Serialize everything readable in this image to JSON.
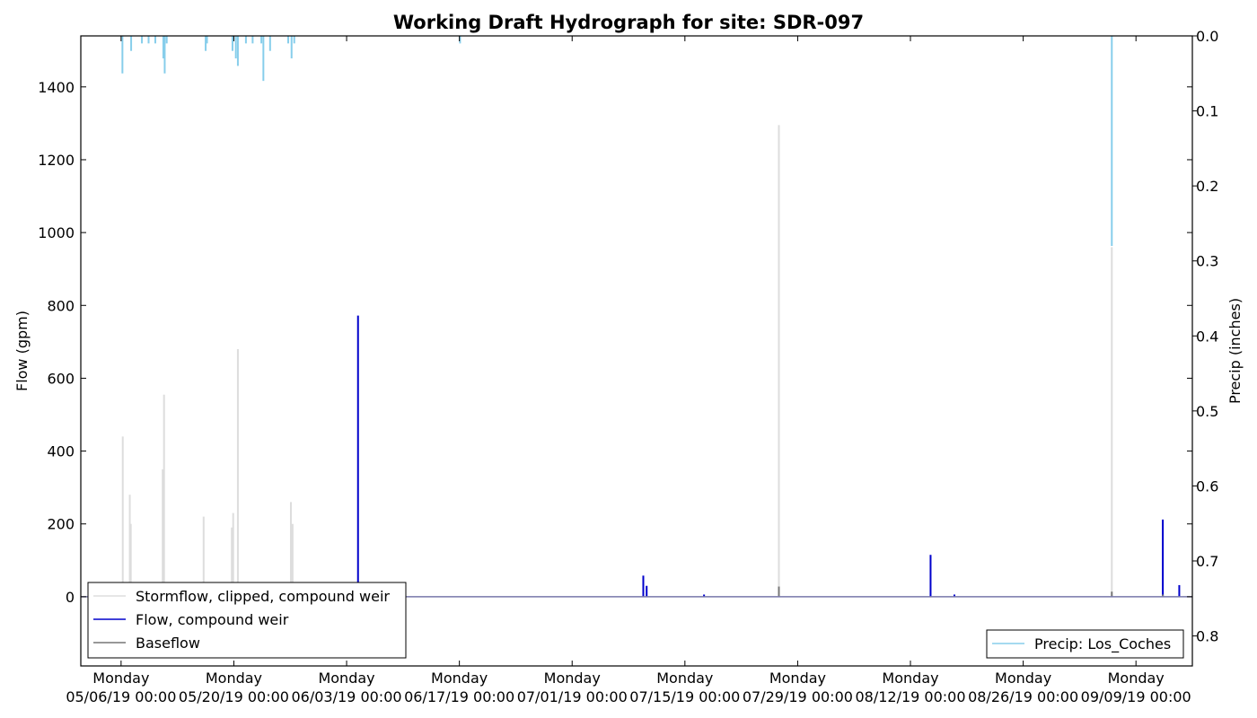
{
  "chart_data": {
    "type": "line",
    "title": "Working Draft Hydrograph for site: SDR-097",
    "ylabel": "Flow (gpm)",
    "y2label": "Precip (inches)",
    "ylim": [
      -190,
      1540
    ],
    "y2lim": [
      0.0,
      0.84
    ],
    "y2_inverted": true,
    "yticks": [
      0,
      200,
      400,
      600,
      800,
      1000,
      1200,
      1400
    ],
    "y2ticks": [
      0.0,
      0.1,
      0.2,
      0.3,
      0.4,
      0.5,
      0.6,
      0.7,
      0.8
    ],
    "xlim": [
      "2019-05-01",
      "2019-09-16"
    ],
    "xticks": [
      {
        "date": "2019-05-06",
        "line1": "Monday",
        "line2": "05/06/19 00:00"
      },
      {
        "date": "2019-05-20",
        "line1": "Monday",
        "line2": "05/20/19 00:00"
      },
      {
        "date": "2019-06-03",
        "line1": "Monday",
        "line2": "06/03/19 00:00"
      },
      {
        "date": "2019-06-17",
        "line1": "Monday",
        "line2": "06/17/19 00:00"
      },
      {
        "date": "2019-07-01",
        "line1": "Monday",
        "line2": "07/01/19 00:00"
      },
      {
        "date": "2019-07-15",
        "line1": "Monday",
        "line2": "07/15/19 00:00"
      },
      {
        "date": "2019-07-29",
        "line1": "Monday",
        "line2": "07/29/19 00:00"
      },
      {
        "date": "2019-08-12",
        "line1": "Monday",
        "line2": "08/12/19 00:00"
      },
      {
        "date": "2019-08-26",
        "line1": "Monday",
        "line2": "08/26/19 00:00"
      },
      {
        "date": "2019-09-09",
        "line1": "Monday",
        "line2": "09/09/19 00:00"
      }
    ],
    "grid": false,
    "legend_left": {
      "placement": "lower-left",
      "entries": [
        {
          "label": "Stormflow, clipped, compound weir",
          "color": "#dddddd"
        },
        {
          "label": "Flow, compound weir",
          "color": "#0000cc"
        },
        {
          "label": "Baseflow",
          "color": "#777777"
        }
      ]
    },
    "legend_right": {
      "placement": "lower-right",
      "entries": [
        {
          "label": "Precip: Los_Coches",
          "color": "#87ceeb"
        }
      ]
    },
    "series": [
      {
        "name": "Stormflow, clipped, compound weir",
        "axis": "left",
        "color": "#dddddd",
        "spikes": [
          {
            "date": "2019-05-06 05:00",
            "value": 440
          },
          {
            "date": "2019-05-07 02:00",
            "value": 280
          },
          {
            "date": "2019-05-07 05:00",
            "value": 200
          },
          {
            "date": "2019-05-11 04:00",
            "value": 350
          },
          {
            "date": "2019-05-11 08:00",
            "value": 555
          },
          {
            "date": "2019-05-16 06:00",
            "value": 220
          },
          {
            "date": "2019-05-19 18:00",
            "value": 190
          },
          {
            "date": "2019-05-19 22:00",
            "value": 230
          },
          {
            "date": "2019-05-20 12:00",
            "value": 680
          },
          {
            "date": "2019-05-27 02:00",
            "value": 260
          },
          {
            "date": "2019-05-27 07:00",
            "value": 200
          },
          {
            "date": "2019-07-26 16:00",
            "value": 1295
          },
          {
            "date": "2019-09-06 00:00",
            "value": 960
          }
        ]
      },
      {
        "name": "Flow, compound weir",
        "axis": "left",
        "color": "#0000cc",
        "spikes": [
          {
            "date": "2019-06-04 10:00",
            "value": 772
          },
          {
            "date": "2019-07-09 20:00",
            "value": 58
          },
          {
            "date": "2019-07-10 06:00",
            "value": 30
          },
          {
            "date": "2019-07-17 09:00",
            "value": 6
          },
          {
            "date": "2019-08-14 12:00",
            "value": 115
          },
          {
            "date": "2019-08-17 11:00",
            "value": 6
          },
          {
            "date": "2019-09-12 08:00",
            "value": 212
          },
          {
            "date": "2019-09-14 09:00",
            "value": 32
          }
        ]
      },
      {
        "name": "Baseflow",
        "axis": "left",
        "color": "#777777",
        "spikes": [
          {
            "date": "2019-07-26 16:00",
            "value": 28
          },
          {
            "date": "2019-09-06 00:00",
            "value": 14
          },
          {
            "date": "2019-09-12 08:00",
            "value": 6
          }
        ]
      },
      {
        "name": "Precip: Los_Coches",
        "axis": "right",
        "color": "#87ceeb",
        "bars": [
          {
            "date": "2019-05-06 04:00",
            "value": 0.05
          },
          {
            "date": "2019-05-07 06:00",
            "value": 0.02
          },
          {
            "date": "2019-05-08 14:00",
            "value": 0.01
          },
          {
            "date": "2019-05-09 10:00",
            "value": 0.01
          },
          {
            "date": "2019-05-10 06:00",
            "value": 0.01
          },
          {
            "date": "2019-05-11 06:00",
            "value": 0.03
          },
          {
            "date": "2019-05-11 10:00",
            "value": 0.05
          },
          {
            "date": "2019-05-11 16:00",
            "value": 0.01
          },
          {
            "date": "2019-05-16 12:00",
            "value": 0.02
          },
          {
            "date": "2019-05-16 16:00",
            "value": 0.01
          },
          {
            "date": "2019-05-19 20:00",
            "value": 0.02
          },
          {
            "date": "2019-05-20 06:00",
            "value": 0.03
          },
          {
            "date": "2019-05-20 12:00",
            "value": 0.04
          },
          {
            "date": "2019-05-21 12:00",
            "value": 0.01
          },
          {
            "date": "2019-05-22 08:00",
            "value": 0.01
          },
          {
            "date": "2019-05-23 10:00",
            "value": 0.01
          },
          {
            "date": "2019-05-23 16:00",
            "value": 0.06
          },
          {
            "date": "2019-05-24 12:00",
            "value": 0.02
          },
          {
            "date": "2019-05-26 18:00",
            "value": 0.01
          },
          {
            "date": "2019-05-27 04:00",
            "value": 0.03
          },
          {
            "date": "2019-05-27 12:00",
            "value": 0.01
          },
          {
            "date": "2019-06-17 02:00",
            "value": 0.01
          },
          {
            "date": "2019-09-06 00:00",
            "value": 0.28
          }
        ]
      }
    ]
  }
}
